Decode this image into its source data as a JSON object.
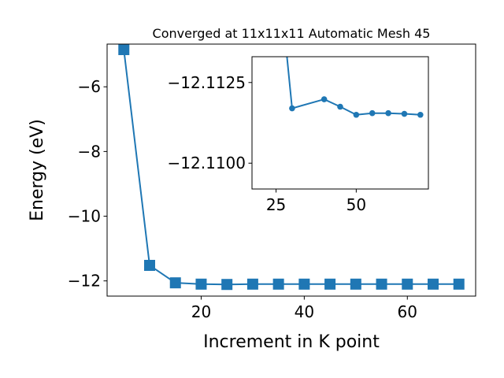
{
  "chart_data": [
    {
      "type": "line",
      "title": "Converged at 11x11x11 Automatic Mesh 45",
      "xlabel": "Increment in K point",
      "ylabel": "Energy (eV)",
      "xlim": [
        1.75,
        73.25
      ],
      "ylim": [
        -12.47,
        -4.68
      ],
      "xticks": [
        "20",
        "40",
        "60"
      ],
      "yticks": [
        "−6",
        "−8",
        "−10",
        "−12"
      ],
      "grid": false,
      "marker": "square",
      "color": "#1f77b4",
      "x": [
        5,
        10,
        15,
        20,
        25,
        30,
        35,
        40,
        45,
        50,
        55,
        60,
        65,
        70
      ],
      "values": [
        -4.85,
        -11.52,
        -12.06,
        -12.1,
        -12.11,
        -12.1,
        -12.1,
        -12.1,
        -12.1,
        -12.1,
        -12.1,
        -12.1,
        -12.1,
        -12.1
      ]
    },
    {
      "type": "line",
      "title": "",
      "xlim": [
        17.5,
        72.5
      ],
      "ylim": [
        -12.1092,
        -12.1133
      ],
      "xticks": [
        "25",
        "50"
      ],
      "yticks": [
        "−12.1125",
        "−12.1100"
      ],
      "grid": false,
      "marker": "circle",
      "color": "#1f77b4",
      "x": [
        27,
        30,
        40,
        45,
        50,
        55,
        60,
        65,
        70
      ],
      "values": [
        -12.1147,
        -12.1117,
        -12.11198,
        -12.11175,
        -12.1115,
        -12.11155,
        -12.11155,
        -12.11153,
        -12.1115
      ]
    }
  ]
}
